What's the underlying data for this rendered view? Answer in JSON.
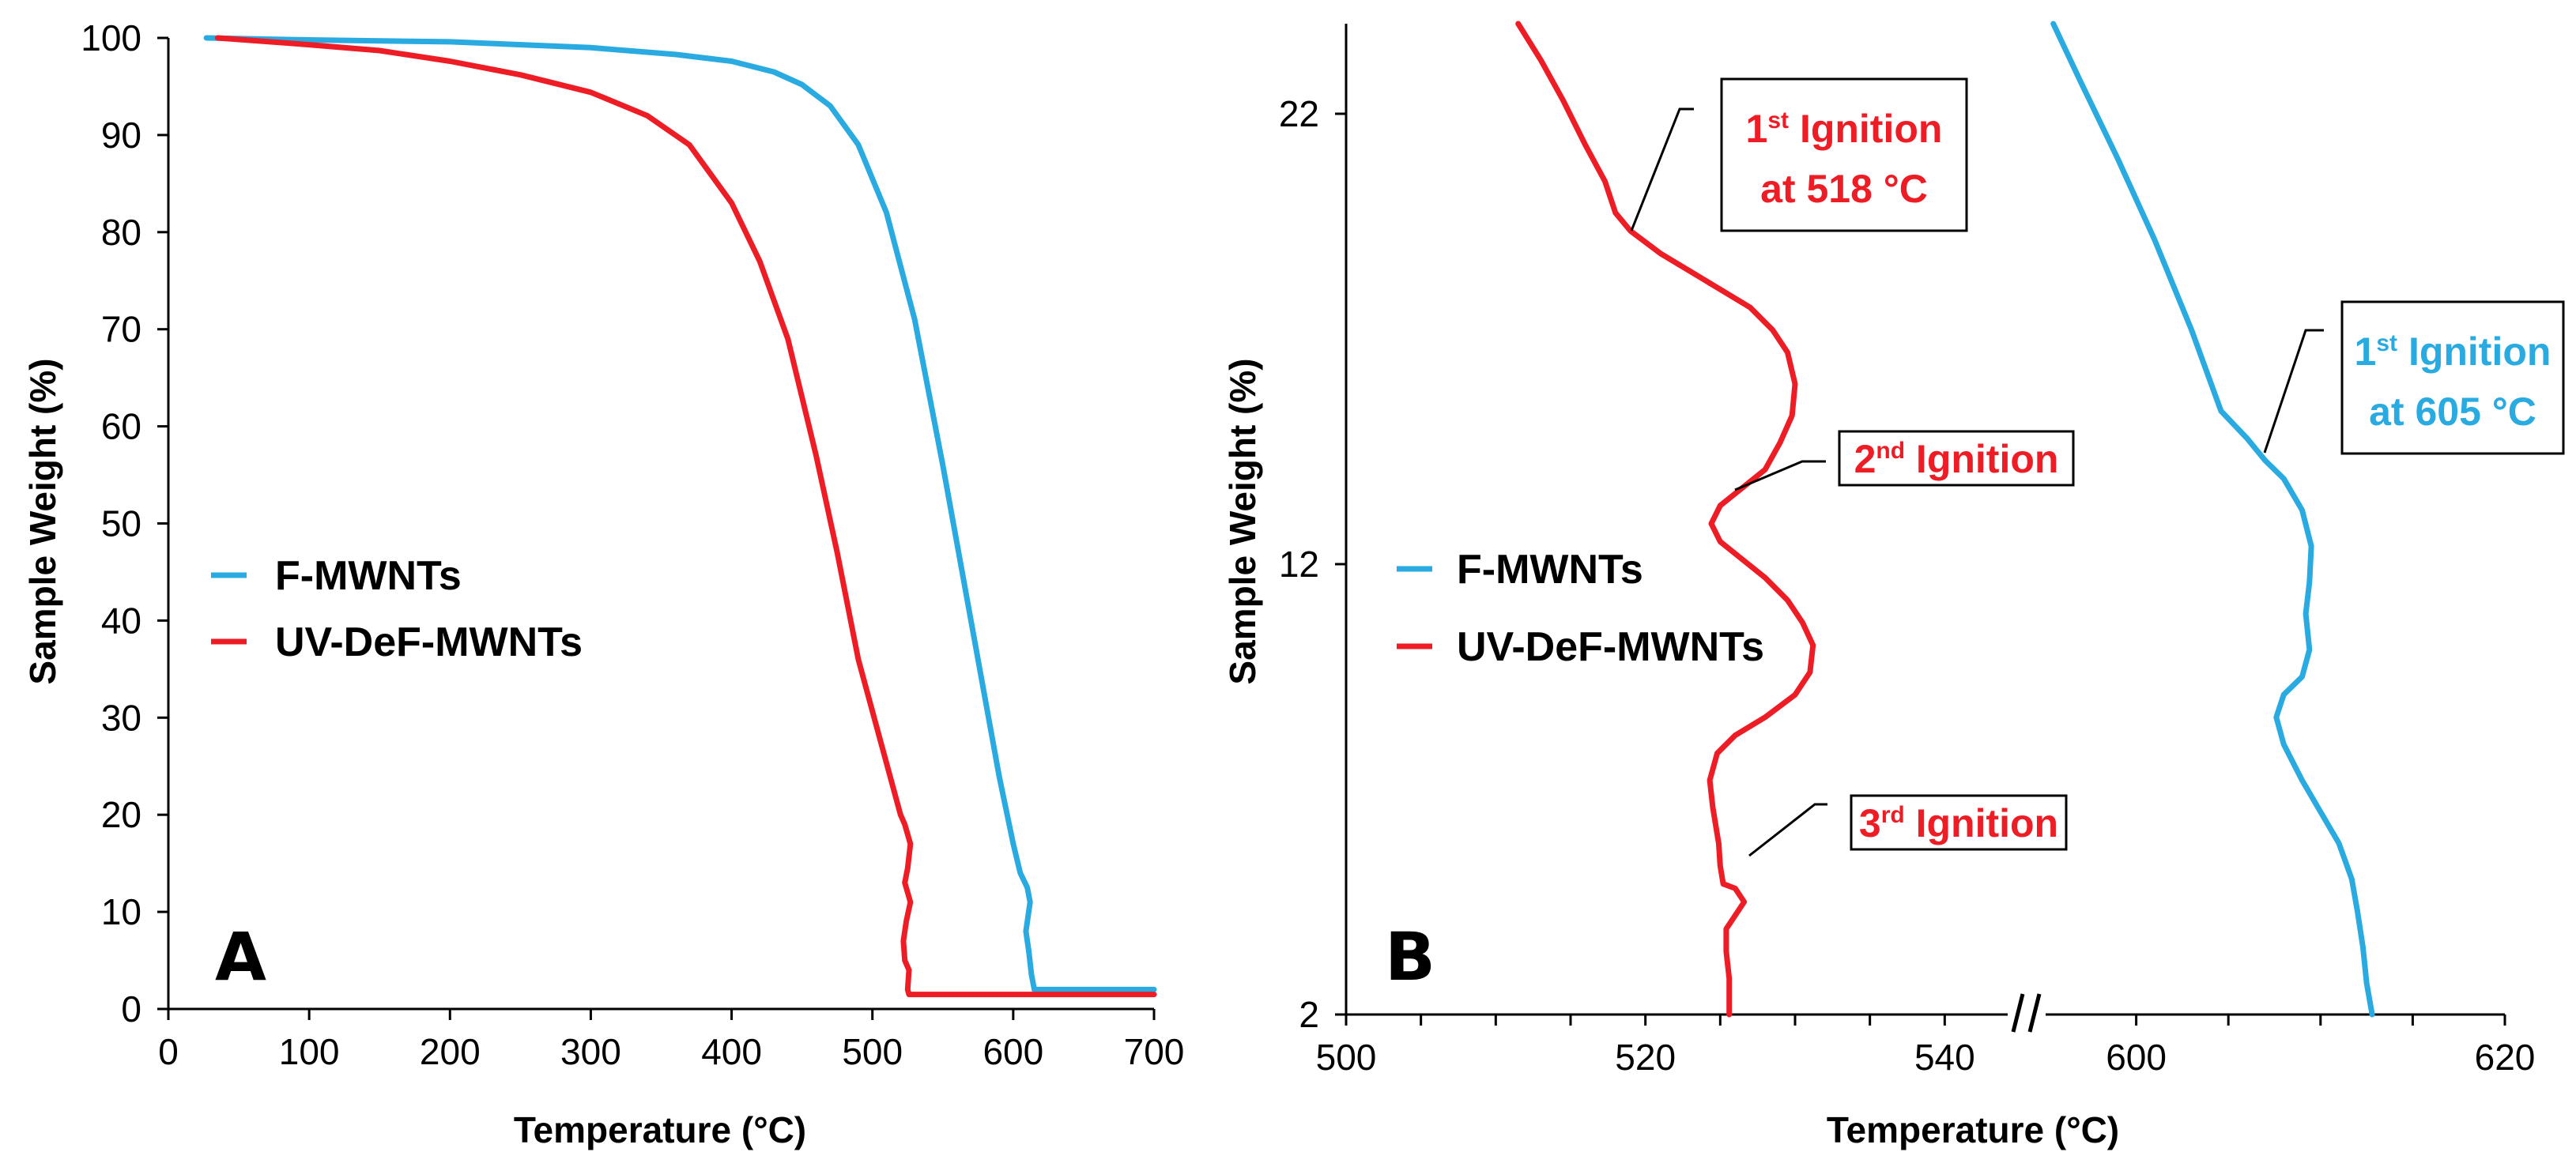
{
  "colors": {
    "f_mwnts": "#29aae1",
    "uv_def_mwnts": "#ee1c24",
    "axis": "#000000"
  },
  "chart_data": [
    {
      "type": "line",
      "panel_label": "A",
      "xlabel": "Temperature (°C)",
      "ylabel": "Sample Weight (%)",
      "xlim": [
        0,
        700
      ],
      "ylim": [
        0,
        100
      ],
      "x_ticks": [
        "0",
        "100",
        "200",
        "300",
        "400",
        "500",
        "600",
        "700"
      ],
      "y_ticks": [
        "0",
        "10",
        "20",
        "30",
        "40",
        "50",
        "60",
        "70",
        "80",
        "90",
        "100"
      ],
      "grid": false,
      "legend": [
        "F-MWNTs",
        "UV-DeF-MWNTs"
      ],
      "legend_position": "center-left",
      "series": [
        {
          "name": "F-MWNTs",
          "color": "#29aae1",
          "points": [
            [
              27,
              100
            ],
            [
              100,
              99.8
            ],
            [
              200,
              99.6
            ],
            [
              300,
              99.0
            ],
            [
              360,
              98.3
            ],
            [
              400,
              97.6
            ],
            [
              430,
              96.5
            ],
            [
              450,
              95.2
            ],
            [
              470,
              93
            ],
            [
              490,
              89
            ],
            [
              510,
              82
            ],
            [
              530,
              71
            ],
            [
              550,
              56
            ],
            [
              570,
              40
            ],
            [
              590,
              24
            ],
            [
              600,
              17
            ],
            [
              605,
              14
            ],
            [
              610,
              12.5
            ],
            [
              612,
              11
            ],
            [
              610,
              9
            ],
            [
              609,
              8
            ],
            [
              611,
              6
            ],
            [
              613,
              3.5
            ],
            [
              615,
              2
            ],
            [
              650,
              2
            ],
            [
              700,
              2
            ]
          ]
        },
        {
          "name": "UV-DeF-MWNTs",
          "color": "#ee1c24",
          "points": [
            [
              35,
              100
            ],
            [
              100,
              99.3
            ],
            [
              150,
              98.7
            ],
            [
              200,
              97.6
            ],
            [
              250,
              96.2
            ],
            [
              300,
              94.4
            ],
            [
              340,
              92
            ],
            [
              370,
              89
            ],
            [
              400,
              83
            ],
            [
              420,
              77
            ],
            [
              440,
              69
            ],
            [
              460,
              57
            ],
            [
              475,
              47
            ],
            [
              490,
              36
            ],
            [
              505,
              28
            ],
            [
              520,
              20
            ],
            [
              523,
              19
            ],
            [
              527,
              17
            ],
            [
              525,
              14.5
            ],
            [
              523,
              13
            ],
            [
              527,
              11
            ],
            [
              524,
              9
            ],
            [
              522,
              7
            ],
            [
              523,
              5
            ],
            [
              526,
              4
            ],
            [
              525,
              2
            ],
            [
              526,
              1.5
            ],
            [
              600,
              1.5
            ],
            [
              700,
              1.5
            ]
          ]
        }
      ]
    },
    {
      "type": "line",
      "panel_label": "B",
      "xlabel": "Temperature (°C)",
      "ylabel": "Sample Weight (%)",
      "x_axis_break": true,
      "x_segments": [
        [
          500,
          545
        ],
        [
          595,
          620
        ]
      ],
      "x_ticks": [
        "500",
        "520",
        "540",
        "600",
        "620"
      ],
      "ylim": [
        2,
        24
      ],
      "y_ticks": [
        "2",
        "12",
        "22"
      ],
      "grid": false,
      "legend": [
        "F-MWNTs",
        "UV-DeF-MWNTs"
      ],
      "legend_position": "center-left",
      "series": [
        {
          "name": "F-MWNTs",
          "color": "#29aae1",
          "points": [
            [
              595.5,
              24
            ],
            [
              597,
              22.7
            ],
            [
              599,
              21
            ],
            [
              601,
              19.2
            ],
            [
              603,
              17.2
            ],
            [
              604.6,
              15.4
            ],
            [
              606,
              14.8
            ],
            [
              607,
              14.3
            ],
            [
              608,
              13.9
            ],
            [
              609,
              13.2
            ],
            [
              609.5,
              12.4
            ],
            [
              609.4,
              11.6
            ],
            [
              609.2,
              10.9
            ],
            [
              609.4,
              10.1
            ],
            [
              609,
              9.5
            ],
            [
              608,
              9.1
            ],
            [
              607.6,
              8.6
            ],
            [
              608,
              8.0
            ],
            [
              609,
              7.2
            ],
            [
              610,
              6.5
            ],
            [
              611,
              5.8
            ],
            [
              611.7,
              5.0
            ],
            [
              612,
              4.3
            ],
            [
              612.3,
              3.5
            ],
            [
              612.5,
              2.7
            ],
            [
              612.8,
              2
            ]
          ]
        },
        {
          "name": "UV-DeF-MWNTs",
          "color": "#ee1c24",
          "points": [
            [
              511.5,
              24
            ],
            [
              513,
              23.2
            ],
            [
              514.5,
              22.3
            ],
            [
              516,
              21.3
            ],
            [
              517.3,
              20.5
            ],
            [
              518,
              19.8
            ],
            [
              519,
              19.4
            ],
            [
              521,
              18.9
            ],
            [
              523,
              18.5
            ],
            [
              525,
              18.1
            ],
            [
              527,
              17.7
            ],
            [
              528.5,
              17.2
            ],
            [
              529.5,
              16.7
            ],
            [
              530,
              16.0
            ],
            [
              529.8,
              15.3
            ],
            [
              529,
              14.7
            ],
            [
              528,
              14.1
            ],
            [
              526.5,
              13.7
            ],
            [
              525,
              13.3
            ],
            [
              524.4,
              12.9
            ],
            [
              525,
              12.5
            ],
            [
              526.5,
              12.1
            ],
            [
              528,
              11.7
            ],
            [
              529.5,
              11.2
            ],
            [
              530.5,
              10.7
            ],
            [
              531.2,
              10.2
            ],
            [
              531,
              9.6
            ],
            [
              530,
              9.1
            ],
            [
              528,
              8.6
            ],
            [
              526,
              8.2
            ],
            [
              524.8,
              7.8
            ],
            [
              524.3,
              7.2
            ],
            [
              524.5,
              6.6
            ],
            [
              524.9,
              5.8
            ],
            [
              525,
              5.3
            ],
            [
              525.2,
              4.9
            ],
            [
              526,
              4.8
            ],
            [
              526.6,
              4.5
            ],
            [
              526,
              4.2
            ],
            [
              525.4,
              3.9
            ],
            [
              525.4,
              3.4
            ],
            [
              525.6,
              2.8
            ],
            [
              525.6,
              2
            ]
          ]
        }
      ],
      "annotations": [
        {
          "text_main": "1",
          "text_sup": "st",
          "text_rest": " Ignition",
          "text_line2": "at 518 °C",
          "color": "#ee1c24",
          "target": [
            518,
            19.8
          ]
        },
        {
          "text_main": "2",
          "text_sup": "nd",
          "text_rest": " Ignition",
          "color": "#ee1c24",
          "target": [
            524.4,
            12.9
          ]
        },
        {
          "text_main": "3",
          "text_sup": "rd",
          "text_rest": " Ignition",
          "color": "#ee1c24",
          "target": [
            525.4,
            4.9
          ]
        },
        {
          "text_main": "1",
          "text_sup": "st",
          "text_rest": " Ignition",
          "text_line2": "at 605 °C",
          "color": "#29aae1",
          "target": [
            605,
            14.8
          ]
        }
      ]
    }
  ]
}
